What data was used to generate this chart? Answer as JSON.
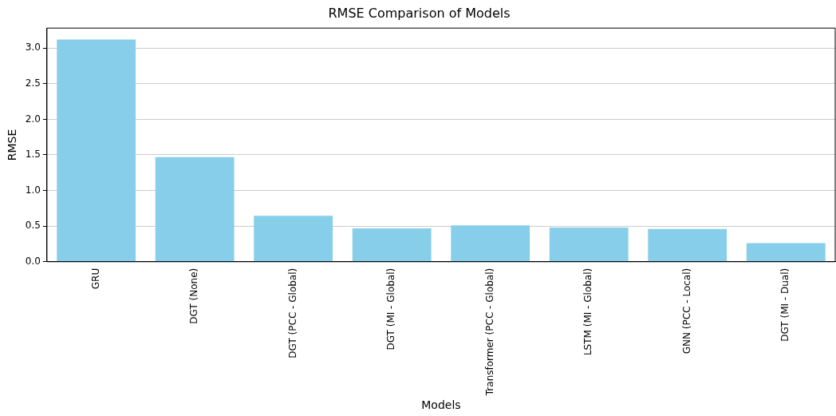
{
  "chart_data": {
    "type": "bar",
    "title": "RMSE Comparison of Models",
    "xlabel": "Models",
    "ylabel": "RMSE",
    "categories": [
      "GRU",
      "DGT (None)",
      "DGT (PCC - Global)",
      "DGT (MI - Global)",
      "Transformer (PCC - Global)",
      "LSTM (MI - Global)",
      "GNN (PCC - Local)",
      "DGT (MI - Dual)"
    ],
    "values": [
      3.12,
      1.47,
      0.646,
      0.468,
      0.51,
      0.48,
      0.46,
      0.26
    ],
    "color": "#87ceeb",
    "ylim": [
      0,
      3.28
    ],
    "yticks": [
      {
        "value": 0,
        "label": "0.0"
      },
      {
        "value": 0.5,
        "label": "0.5"
      },
      {
        "value": 1,
        "label": "1.0"
      },
      {
        "value": 1.5,
        "label": "1.5"
      },
      {
        "value": 2,
        "label": "2.0"
      },
      {
        "value": 2.5,
        "label": "2.5"
      },
      {
        "value": 3,
        "label": "3.0"
      }
    ],
    "grid": "y",
    "legend": false
  }
}
